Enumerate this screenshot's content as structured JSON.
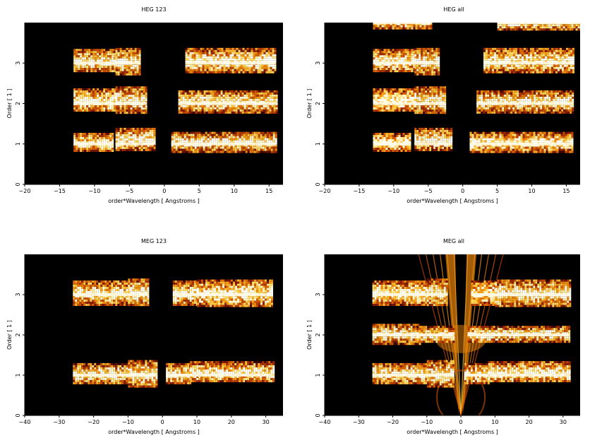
{
  "figure": {
    "background": "#ffffff",
    "axes_color": "#000000",
    "colormap": [
      "#000000",
      "#3a0500",
      "#8a1c00",
      "#c84a00",
      "#ef8d0c",
      "#ffd24a",
      "#fff6c8",
      "#ffffff"
    ]
  },
  "chart_data": [
    {
      "type": "heatmap",
      "title": "HEG 123",
      "xlabel": "order*Wavelength [ Angstroms ]",
      "ylabel": "Order [ 1 ]",
      "xlim": [
        -20,
        17
      ],
      "ylim": [
        0,
        4
      ],
      "xticks": [
        -20,
        -15,
        -10,
        -5,
        0,
        5,
        10,
        15
      ],
      "yticks": [
        0,
        1,
        2,
        3
      ],
      "bands": [
        {
          "order": 1,
          "segments": [
            [
              -13,
              -7.5,
              0.35,
              0.55
            ],
            [
              -7,
              -1.5,
              0.3,
              0.8
            ],
            [
              1,
              16,
              0.35,
              0.6
            ]
          ]
        },
        {
          "order": 2,
          "segments": [
            [
              -13,
              -7,
              0.4,
              0.75
            ],
            [
              -7,
              -2.5,
              0.45,
              0.85
            ],
            [
              2,
              16,
              0.4,
              0.65
            ]
          ]
        },
        {
          "order": 3,
          "segments": [
            [
              -13,
              -7,
              0.45,
              0.7
            ],
            [
              -7,
              -3.5,
              0.55,
              0.75
            ],
            [
              3,
              16,
              0.45,
              0.75
            ]
          ]
        }
      ]
    },
    {
      "type": "heatmap",
      "title": "HEG all",
      "xlabel": "order*Wavelength [ Angstroms ]",
      "ylabel": "Order [ 1 ]",
      "xlim": [
        -20,
        17
      ],
      "ylim": [
        0,
        4
      ],
      "xticks": [
        -20,
        -15,
        -10,
        -5,
        0,
        5,
        10,
        15
      ],
      "yticks": [
        0,
        1,
        2,
        3
      ],
      "bands": [
        {
          "order": 1,
          "segments": [
            [
              -13,
              -7.5,
              0.35,
              0.55
            ],
            [
              -7,
              -1.5,
              0.3,
              0.8
            ],
            [
              1,
              16,
              0.35,
              0.6
            ]
          ]
        },
        {
          "order": 2,
          "segments": [
            [
              -13,
              -7,
              0.4,
              0.75
            ],
            [
              -7,
              -2.5,
              0.45,
              0.85
            ],
            [
              2,
              16,
              0.4,
              0.65
            ]
          ]
        },
        {
          "order": 3,
          "segments": [
            [
              -13,
              -7,
              0.45,
              0.7
            ],
            [
              -7,
              -3.5,
              0.55,
              0.75
            ],
            [
              3,
              16,
              0.45,
              0.75
            ]
          ]
        },
        {
          "order": 4,
          "segments": [
            [
              -13,
              -4.5,
              0.3,
              0.5
            ],
            [
              5,
              17,
              0.35,
              0.55
            ]
          ]
        }
      ]
    },
    {
      "type": "heatmap",
      "title": "MEG 123",
      "xlabel": "order*Wavelength [ Angstroms ]",
      "ylabel": "Order [ 1 ]",
      "xlim": [
        -40,
        35
      ],
      "ylim": [
        0,
        4
      ],
      "xticks": [
        -40,
        -30,
        -20,
        -10,
        0,
        10,
        20,
        30
      ],
      "yticks": [
        0,
        1,
        2,
        3
      ],
      "bands": [
        {
          "order": 1,
          "segments": [
            [
              -26,
              -10,
              0.4,
              0.6
            ],
            [
              -10,
              -2,
              0.55,
              0.75
            ],
            [
              1,
              8,
              0.45,
              0.6
            ],
            [
              8,
              32,
              0.35,
              0.7
            ]
          ]
        },
        {
          "order": 3,
          "segments": [
            [
              -26,
              -10,
              0.5,
              0.7
            ],
            [
              -10,
              -4,
              0.55,
              0.8
            ],
            [
              3,
              10,
              0.5,
              0.7
            ],
            [
              10,
              32,
              0.6,
              0.75
            ]
          ]
        }
      ]
    },
    {
      "type": "heatmap",
      "title": "MEG all",
      "xlabel": "order*Wavelength [ Angstroms ]",
      "ylabel": "Order [ 1 ]",
      "xlim": [
        -40,
        35
      ],
      "ylim": [
        0,
        4
      ],
      "xticks": [
        -40,
        -30,
        -20,
        -10,
        0,
        10,
        20,
        30
      ],
      "yticks": [
        0,
        1,
        2,
        3
      ],
      "bands": [
        {
          "order": 1,
          "segments": [
            [
              -26,
              -10,
              0.4,
              0.6
            ],
            [
              -10,
              -2,
              0.55,
              0.75
            ],
            [
              1,
              8,
              0.45,
              0.6
            ],
            [
              8,
              32,
              0.35,
              0.7
            ]
          ]
        },
        {
          "order": 2,
          "segments": [
            [
              -26,
              -12,
              0.4,
              0.55
            ],
            [
              -13,
              -2,
              0.35,
              0.45
            ],
            [
              2,
              11,
              0.35,
              0.45
            ],
            [
              11,
              32,
              0.3,
              0.45
            ]
          ]
        },
        {
          "order": 3,
          "segments": [
            [
              -26,
              -10,
              0.5,
              0.7
            ],
            [
              -10,
              -4,
              0.55,
              0.8
            ],
            [
              3,
              10,
              0.5,
              0.7
            ],
            [
              10,
              32,
              0.6,
              0.75
            ]
          ]
        }
      ],
      "zero_order_fan": true
    }
  ]
}
